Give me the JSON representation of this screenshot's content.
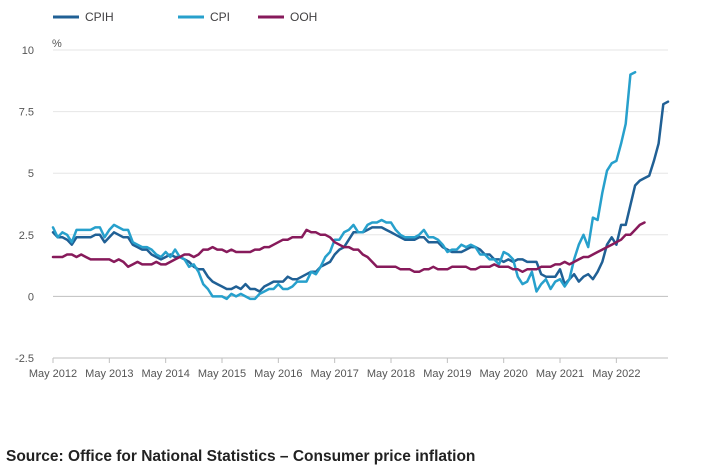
{
  "source": "Source: Office for National Statistics – Consumer price inflation",
  "chart_data": {
    "type": "line",
    "unit": "%",
    "ylim": [
      -2.5,
      10
    ],
    "yticks": [
      {
        "value": 10,
        "label": "10"
      },
      {
        "value": 7.5,
        "label": "7.5"
      },
      {
        "value": 5,
        "label": "5"
      },
      {
        "value": 2.5,
        "label": "2.5"
      },
      {
        "value": 0,
        "label": "0"
      },
      {
        "value": -2.5,
        "label": "-2.5"
      }
    ],
    "xticks": [
      "May 2012",
      "May 2013",
      "May 2014",
      "May 2015",
      "May 2016",
      "May 2017",
      "May 2018",
      "May 2019",
      "May 2020",
      "May 2021",
      "May 2022"
    ],
    "grid": true,
    "legend_position": "top-left",
    "x_start": "May 2012",
    "x_interval": "month",
    "series": [
      {
        "name": "CPIH",
        "color": "#206095",
        "values": [
          2.6,
          2.4,
          2.4,
          2.3,
          2.1,
          2.4,
          2.4,
          2.4,
          2.4,
          2.5,
          2.5,
          2.2,
          2.4,
          2.6,
          2.5,
          2.4,
          2.4,
          2.1,
          2.0,
          1.9,
          1.9,
          1.7,
          1.6,
          1.5,
          1.6,
          1.7,
          1.6,
          1.6,
          1.5,
          1.4,
          1.2,
          1.1,
          1.1,
          0.8,
          0.6,
          0.5,
          0.4,
          0.3,
          0.3,
          0.4,
          0.3,
          0.5,
          0.3,
          0.3,
          0.2,
          0.4,
          0.5,
          0.6,
          0.6,
          0.6,
          0.8,
          0.7,
          0.7,
          0.8,
          0.9,
          1.0,
          1.0,
          1.2,
          1.3,
          1.4,
          1.7,
          1.9,
          2.0,
          2.3,
          2.6,
          2.6,
          2.6,
          2.7,
          2.8,
          2.8,
          2.8,
          2.7,
          2.6,
          2.5,
          2.4,
          2.3,
          2.3,
          2.3,
          2.4,
          2.4,
          2.2,
          2.2,
          2.2,
          2.0,
          1.9,
          1.8,
          1.8,
          1.8,
          1.9,
          2.0,
          2.0,
          1.9,
          1.7,
          1.7,
          1.5,
          1.5,
          1.4,
          1.5,
          1.4,
          1.5,
          1.5,
          1.4,
          1.4,
          1.4,
          0.9,
          0.8,
          0.8,
          0.8,
          1.1,
          0.5,
          0.7,
          0.9,
          0.6,
          0.8,
          0.9,
          0.7,
          1.0,
          1.4,
          2.1,
          2.4,
          2.1,
          2.9,
          2.9,
          3.7,
          4.5,
          4.7,
          4.8,
          4.9,
          5.5,
          6.2,
          7.8,
          7.9
        ]
      },
      {
        "name": "CPI",
        "color": "#27a0cc",
        "values": [
          2.8,
          2.4,
          2.6,
          2.5,
          2.2,
          2.7,
          2.7,
          2.7,
          2.7,
          2.8,
          2.8,
          2.4,
          2.7,
          2.9,
          2.8,
          2.7,
          2.7,
          2.2,
          2.1,
          2.0,
          2.0,
          1.9,
          1.7,
          1.6,
          1.8,
          1.6,
          1.9,
          1.6,
          1.5,
          1.2,
          1.3,
          1.0,
          0.5,
          0.3,
          0.0,
          0.0,
          0.0,
          -0.1,
          0.1,
          0.0,
          0.1,
          0.0,
          -0.1,
          -0.1,
          0.1,
          0.2,
          0.3,
          0.3,
          0.5,
          0.3,
          0.3,
          0.4,
          0.6,
          0.6,
          0.6,
          1.0,
          0.9,
          1.2,
          1.6,
          1.8,
          2.3,
          2.3,
          2.6,
          2.7,
          2.9,
          2.6,
          2.6,
          2.9,
          3.0,
          3.0,
          3.1,
          3.0,
          3.0,
          2.7,
          2.5,
          2.4,
          2.4,
          2.4,
          2.5,
          2.7,
          2.4,
          2.4,
          2.3,
          2.1,
          1.8,
          1.9,
          1.9,
          2.1,
          2.0,
          2.1,
          2.0,
          1.7,
          1.7,
          1.5,
          1.5,
          1.3,
          1.8,
          1.7,
          1.5,
          0.8,
          0.5,
          0.6,
          1.0,
          0.2,
          0.5,
          0.7,
          0.3,
          0.6,
          0.7,
          0.4,
          0.7,
          1.5,
          2.1,
          2.5,
          2.0,
          3.2,
          3.1,
          4.2,
          5.1,
          5.4,
          5.5,
          6.2,
          7.0,
          9.0,
          9.1
        ]
      },
      {
        "name": "OOH",
        "color": "#871a5b",
        "values": [
          1.6,
          1.6,
          1.6,
          1.7,
          1.7,
          1.6,
          1.7,
          1.6,
          1.5,
          1.5,
          1.5,
          1.5,
          1.5,
          1.4,
          1.5,
          1.4,
          1.2,
          1.3,
          1.4,
          1.3,
          1.3,
          1.3,
          1.4,
          1.3,
          1.3,
          1.4,
          1.5,
          1.6,
          1.7,
          1.7,
          1.6,
          1.7,
          1.9,
          1.9,
          2.0,
          1.9,
          1.9,
          1.8,
          1.9,
          1.8,
          1.8,
          1.8,
          1.8,
          1.9,
          1.9,
          2.0,
          2.0,
          2.1,
          2.2,
          2.3,
          2.3,
          2.4,
          2.4,
          2.4,
          2.7,
          2.6,
          2.6,
          2.5,
          2.5,
          2.4,
          2.2,
          2.1,
          2.0,
          2.0,
          1.9,
          1.9,
          1.7,
          1.6,
          1.4,
          1.2,
          1.2,
          1.2,
          1.2,
          1.2,
          1.1,
          1.1,
          1.1,
          1.0,
          1.0,
          1.1,
          1.1,
          1.2,
          1.1,
          1.1,
          1.1,
          1.2,
          1.2,
          1.2,
          1.2,
          1.1,
          1.1,
          1.2,
          1.2,
          1.2,
          1.3,
          1.2,
          1.2,
          1.2,
          1.1,
          1.1,
          1.0,
          1.1,
          1.1,
          1.1,
          1.2,
          1.2,
          1.2,
          1.3,
          1.3,
          1.4,
          1.3,
          1.4,
          1.5,
          1.6,
          1.6,
          1.7,
          1.8,
          1.9,
          2.0,
          2.1,
          2.2,
          2.3,
          2.5,
          2.5,
          2.7,
          2.9,
          3.0
        ]
      }
    ]
  }
}
